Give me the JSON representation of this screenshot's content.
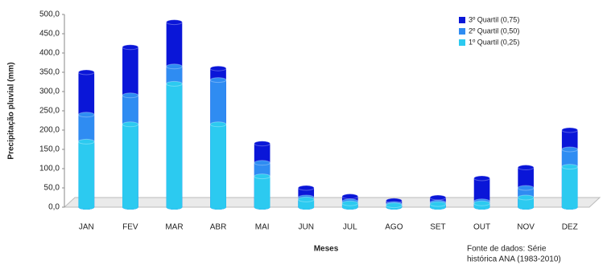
{
  "chart_data": {
    "type": "bar",
    "mode": "overlap",
    "y_label": "Precipitação pluvial (mm)",
    "x_label": "Meses",
    "note": [
      "Fonte de dados: Série",
      "histórica ANA (1983-2010)"
    ],
    "categories": [
      "JAN",
      "FEV",
      "MAR",
      "ABR",
      "MAI",
      "JUN",
      "JUL",
      "AGO",
      "SET",
      "OUT",
      "NOV",
      "DEZ"
    ],
    "series": [
      {
        "name": "3º Quartil (0,75)",
        "color": "#0a16d8",
        "values": [
          350,
          415,
          480,
          360,
          165,
          50,
          28,
          17,
          25,
          75,
          103,
          200
        ]
      },
      {
        "name": "2º Quartil (0,50)",
        "color": "#2f8cf2",
        "values": [
          240,
          290,
          365,
          330,
          115,
          25,
          15,
          8,
          12,
          15,
          50,
          150
        ]
      },
      {
        "name": "1º Quartil (0,25)",
        "color": "#2ccaf0",
        "values": [
          170,
          215,
          320,
          215,
          80,
          20,
          10,
          5,
          8,
          10,
          25,
          105
        ]
      }
    ],
    "ylim": [
      0,
      500
    ],
    "yticks": [
      {
        "value": 0,
        "label": "0,0"
      },
      {
        "value": 50,
        "label": "50,0"
      },
      {
        "value": 100,
        "label": "100,0"
      },
      {
        "value": 150,
        "label": "150,0"
      },
      {
        "value": 200,
        "label": "200,0"
      },
      {
        "value": 250,
        "label": "250,0"
      },
      {
        "value": 300,
        "label": "300,0"
      },
      {
        "value": 350,
        "label": "350,0"
      },
      {
        "value": 400,
        "label": "400,0"
      },
      {
        "value": 450,
        "label": "450,0"
      },
      {
        "value": 500,
        "label": "500,0"
      }
    ],
    "grid": false,
    "legend": "top-right"
  }
}
